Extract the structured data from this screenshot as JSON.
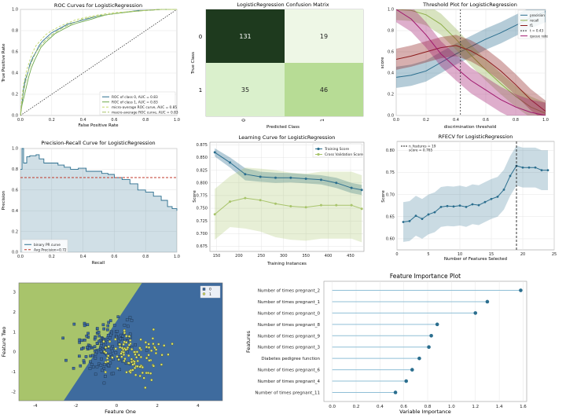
{
  "chart_data": [
    {
      "type": "line",
      "panel": "roc",
      "title": "ROC Curves for LogisticRegression",
      "xlabel": "False Positive Rate",
      "ylabel": "True Positive Rate",
      "xlim": [
        0,
        1
      ],
      "ylim": [
        0,
        1
      ],
      "xticks": [
        "0.0",
        "0.2",
        "0.4",
        "0.6",
        "0.8",
        "1.0"
      ],
      "yticks": [
        "0.0",
        "0.2",
        "0.4",
        "0.6",
        "0.8",
        "1.0"
      ],
      "legend_position": "bottom-right",
      "legend": [
        "ROC of class 0, AUC = 0.83",
        "ROC of class 1, AUC = 0.83",
        "micro-average ROC curve, AUC = 0.85",
        "macro-average ROC curve, AUC = 0.83"
      ],
      "series": [
        {
          "name": "ROC of class 0",
          "color": "#2b6e8e",
          "dash": "",
          "x": [
            0,
            0.01,
            0.02,
            0.03,
            0.05,
            0.06,
            0.08,
            0.1,
            0.12,
            0.14,
            0.17,
            0.2,
            0.25,
            0.3,
            0.35,
            0.4,
            0.45,
            0.5,
            0.55,
            0.6,
            0.65,
            0.7,
            0.75,
            0.8,
            0.9,
            1
          ],
          "y": [
            0,
            0.12,
            0.25,
            0.33,
            0.42,
            0.48,
            0.55,
            0.6,
            0.66,
            0.7,
            0.74,
            0.78,
            0.82,
            0.86,
            0.88,
            0.9,
            0.92,
            0.94,
            0.95,
            0.96,
            0.97,
            0.98,
            0.99,
            0.99,
            1,
            1
          ]
        },
        {
          "name": "ROC of class 1",
          "color": "#6ca84a",
          "dash": "",
          "x": [
            0,
            0.01,
            0.03,
            0.05,
            0.07,
            0.09,
            0.11,
            0.13,
            0.16,
            0.19,
            0.22,
            0.27,
            0.32,
            0.36,
            0.41,
            0.46,
            0.5,
            0.55,
            0.6,
            0.66,
            0.72,
            0.8,
            0.9,
            1
          ],
          "y": [
            0,
            0.1,
            0.22,
            0.35,
            0.45,
            0.52,
            0.58,
            0.64,
            0.69,
            0.73,
            0.77,
            0.81,
            0.85,
            0.87,
            0.89,
            0.91,
            0.93,
            0.95,
            0.96,
            0.97,
            0.98,
            0.99,
            1,
            1
          ]
        },
        {
          "name": "micro-average ROC curve",
          "color": "#c2d96b",
          "dash": "3,2",
          "x": [
            0,
            0.01,
            0.02,
            0.04,
            0.06,
            0.08,
            0.1,
            0.13,
            0.16,
            0.2,
            0.25,
            0.3,
            0.35,
            0.4,
            0.5,
            0.6,
            0.7,
            0.8,
            0.9,
            1
          ],
          "y": [
            0,
            0.18,
            0.3,
            0.43,
            0.52,
            0.6,
            0.66,
            0.71,
            0.76,
            0.8,
            0.84,
            0.87,
            0.9,
            0.92,
            0.95,
            0.97,
            0.98,
            0.99,
            1,
            1
          ]
        },
        {
          "name": "macro-average ROC curve",
          "color": "#a8c46b",
          "dash": "5,2",
          "x": [
            0,
            0.01,
            0.03,
            0.05,
            0.07,
            0.1,
            0.13,
            0.16,
            0.2,
            0.25,
            0.3,
            0.35,
            0.4,
            0.5,
            0.6,
            0.7,
            0.8,
            0.9,
            1
          ],
          "y": [
            0,
            0.14,
            0.3,
            0.42,
            0.5,
            0.6,
            0.66,
            0.71,
            0.76,
            0.81,
            0.85,
            0.88,
            0.91,
            0.94,
            0.96,
            0.98,
            0.99,
            1,
            1
          ]
        }
      ]
    },
    {
      "type": "heatmap",
      "panel": "confusion",
      "title": "LogisticRegression Confusion Matrix",
      "xlabel": "Predicted Class",
      "ylabel": "True Class",
      "labels": [
        "0",
        "1"
      ],
      "matrix": [
        [
          131,
          19
        ],
        [
          35,
          46
        ]
      ]
    },
    {
      "type": "line",
      "panel": "threshold",
      "title": "Threshold Plot for LogisticRegression",
      "xlabel": "discrimination threshold",
      "ylabel": "score",
      "xlim": [
        0,
        1
      ],
      "ylim": [
        0,
        1
      ],
      "xticks": [
        "0.0",
        "0.2",
        "0.4",
        "0.6",
        "0.8",
        "1.0"
      ],
      "yticks": [
        "0.0",
        "0.2",
        "0.4",
        "0.6",
        "0.8",
        "1.0"
      ],
      "threshold_value": 0.43,
      "legend": [
        "precision",
        "recall",
        "f1",
        "t = 0.43",
        "queue rate"
      ],
      "series": [
        {
          "name": "precision",
          "color": "#2b6e8e",
          "x": [
            0,
            0.1,
            0.2,
            0.3,
            0.4,
            0.5,
            0.6,
            0.7,
            0.8,
            0.9,
            1
          ],
          "y": [
            0.36,
            0.38,
            0.42,
            0.5,
            0.58,
            0.65,
            0.72,
            0.78,
            0.85,
            0.92,
            0.98
          ],
          "band": 0.1
        },
        {
          "name": "recall",
          "color": "#8fae4a",
          "x": [
            0,
            0.1,
            0.2,
            0.3,
            0.4,
            0.5,
            0.6,
            0.7,
            0.8,
            0.9,
            1
          ],
          "y": [
            1.0,
            0.99,
            0.95,
            0.86,
            0.72,
            0.57,
            0.43,
            0.3,
            0.18,
            0.08,
            0.02
          ],
          "band": 0.1
        },
        {
          "name": "f1",
          "color": "#8b1a1a",
          "x": [
            0,
            0.1,
            0.2,
            0.3,
            0.4,
            0.5,
            0.6,
            0.7,
            0.8,
            0.9,
            1
          ],
          "y": [
            0.53,
            0.56,
            0.6,
            0.64,
            0.66,
            0.61,
            0.53,
            0.42,
            0.29,
            0.15,
            0.04
          ],
          "band": 0.1
        },
        {
          "name": "queue rate",
          "color": "#a0186e",
          "x": [
            0,
            0.1,
            0.2,
            0.3,
            0.4,
            0.5,
            0.6,
            0.7,
            0.8,
            0.9,
            1
          ],
          "y": [
            1.0,
            0.91,
            0.76,
            0.58,
            0.45,
            0.33,
            0.24,
            0.15,
            0.08,
            0.03,
            0.0
          ],
          "band": 0.12
        }
      ]
    },
    {
      "type": "area",
      "panel": "pr",
      "title": "Precision-Recall Curve for LogisticRegression",
      "xlabel": "Recall",
      "ylabel": "Precision",
      "xlim": [
        0,
        1
      ],
      "ylim": [
        0,
        1
      ],
      "xticks": [
        "0.0",
        "0.2",
        "0.4",
        "0.6",
        "0.8",
        "1.0"
      ],
      "yticks": [
        "0.0",
        "0.2",
        "0.4",
        "0.6",
        "0.8",
        "1.0"
      ],
      "avg_precision": 0.72,
      "legend": [
        "binary PR curve",
        "Avg Precision=0.72"
      ],
      "x": [
        0,
        0.01,
        0.02,
        0.04,
        0.06,
        0.08,
        0.1,
        0.12,
        0.15,
        0.2,
        0.24,
        0.28,
        0.32,
        0.37,
        0.42,
        0.47,
        0.52,
        0.56,
        0.6,
        0.65,
        0.7,
        0.75,
        0.8,
        0.85,
        0.9,
        0.94,
        0.97,
        1
      ],
      "y": [
        0.8,
        1.0,
        0.86,
        0.92,
        0.93,
        0.93,
        0.94,
        0.9,
        0.86,
        0.86,
        0.84,
        0.82,
        0.8,
        0.81,
        0.78,
        0.78,
        0.76,
        0.75,
        0.72,
        0.7,
        0.66,
        0.6,
        0.58,
        0.54,
        0.5,
        0.44,
        0.42,
        0.4
      ]
    },
    {
      "type": "line",
      "panel": "learning",
      "title": "Learning Curve for LogisticRegression",
      "xlabel": "Training Instances",
      "ylabel": "Score",
      "xlim": [
        135,
        480
      ],
      "ylim": [
        0.665,
        0.88
      ],
      "xticks": [
        150,
        200,
        250,
        300,
        350,
        400,
        450
      ],
      "yticks": [
        "0.675",
        "0.700",
        "0.725",
        "0.750",
        "0.775",
        "0.800",
        "0.825",
        "0.850",
        "0.875"
      ],
      "legend": [
        "Training Score",
        "Cross Validation Score"
      ],
      "series": [
        {
          "name": "Training Score",
          "color": "#2b6e8e",
          "x": [
            146,
            180,
            214,
            248,
            282,
            316,
            350,
            384,
            418,
            452,
            475
          ],
          "y": [
            0.86,
            0.84,
            0.817,
            0.812,
            0.81,
            0.81,
            0.808,
            0.806,
            0.8,
            0.79,
            0.786
          ],
          "band": [
            0.008,
            0.01,
            0.012,
            0.01,
            0.01,
            0.009,
            0.009,
            0.009,
            0.01,
            0.01,
            0.01
          ]
        },
        {
          "name": "Cross Validation Score",
          "color": "#a8c46b",
          "x": [
            146,
            180,
            214,
            248,
            282,
            316,
            350,
            384,
            418,
            452,
            475
          ],
          "y": [
            0.738,
            0.763,
            0.77,
            0.766,
            0.759,
            0.754,
            0.752,
            0.756,
            0.756,
            0.756,
            0.749
          ],
          "band": [
            0.05,
            0.05,
            0.06,
            0.062,
            0.066,
            0.066,
            0.066,
            0.066,
            0.066,
            0.066,
            0.066
          ]
        }
      ]
    },
    {
      "type": "line",
      "panel": "rfecv",
      "title": "RFECV for LogisticRegression",
      "xlabel": "Number of Features Selected",
      "ylabel": "Score",
      "xlim": [
        0,
        25
      ],
      "ylim": [
        0.575,
        0.82
      ],
      "xticks": [
        0,
        5,
        10,
        15,
        20,
        25
      ],
      "yticks": [
        "0.60",
        "0.65",
        "0.70",
        "0.75",
        "0.80"
      ],
      "n_features": 19,
      "legend": [
        "n_features = 19",
        "score = 0.765"
      ],
      "x": [
        1,
        2,
        3,
        4,
        5,
        6,
        7,
        8,
        9,
        10,
        11,
        12,
        13,
        14,
        15,
        16,
        17,
        18,
        19,
        20,
        21,
        22,
        23,
        24
      ],
      "y": [
        0.638,
        0.64,
        0.652,
        0.645,
        0.655,
        0.66,
        0.672,
        0.674,
        0.673,
        0.675,
        0.672,
        0.678,
        0.676,
        0.683,
        0.69,
        0.695,
        0.711,
        0.742,
        0.765,
        0.761,
        0.761,
        0.761,
        0.755,
        0.755
      ],
      "band": 0.045
    },
    {
      "type": "scatter",
      "panel": "decision",
      "xlabel": "Feature One",
      "ylabel": "Feature Two",
      "xlim": [
        -4.8,
        5.2
      ],
      "ylim": [
        -2.45,
        3.45
      ],
      "xticks": [
        -4,
        -2,
        0,
        2,
        4
      ],
      "yticks": [
        -2,
        -1,
        0,
        1,
        2,
        3
      ],
      "legend": [
        "0",
        "1"
      ],
      "region_colors": [
        "#a8c46b",
        "#3e6b9e"
      ],
      "boundary": {
        "x0": -2.6,
        "y0": -2.45,
        "x1": 1.25,
        "y1": 3.45
      }
    },
    {
      "type": "bar",
      "panel": "importance",
      "title": "Feature Importance Plot",
      "xlabel": "Variable Importance",
      "ylabel": "Features",
      "xlim": [
        -0.07,
        1.63
      ],
      "xticks": [
        "0.0",
        "0.2",
        "0.4",
        "0.6",
        "0.8",
        "1.0",
        "1.2",
        "1.4",
        "1.6"
      ],
      "categories": [
        "Number of times pregnant_2",
        "Number of times pregnant_1",
        "Number of times pregnant_0",
        "Number of times pregnant_8",
        "Number of times pregnant_9",
        "Number of times pregnant_3",
        "Diabetes pedigree function",
        "Number of times pregnant_6",
        "Number of times pregnant_4",
        "Number of times pregnant_11"
      ],
      "values": [
        1.58,
        1.3,
        1.2,
        0.88,
        0.83,
        0.81,
        0.73,
        0.67,
        0.62,
        0.53
      ]
    }
  ],
  "colors": {
    "blue": "#2b6e8e",
    "green": "#a8c46b",
    "red": "#c0392b",
    "dark_green": "#1e3a1e"
  }
}
